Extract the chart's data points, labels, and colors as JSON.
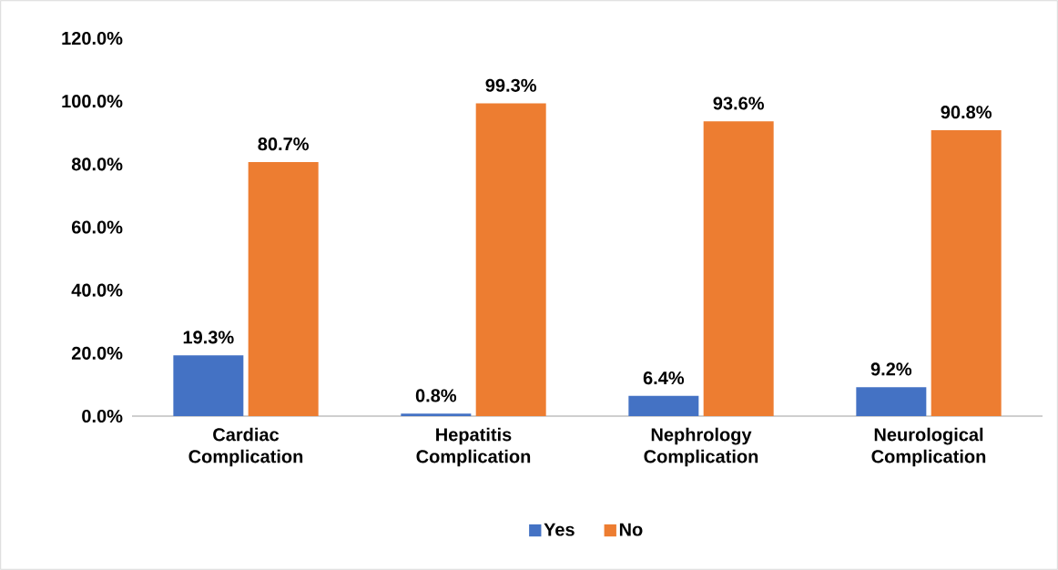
{
  "chart_data": {
    "type": "bar",
    "categories": [
      "Cardiac Complication",
      "Hepatitis Complication",
      "Nephrology Complication",
      "Neurological Complication"
    ],
    "series": [
      {
        "name": "Yes",
        "color": "#4472c4",
        "values": [
          19.3,
          0.8,
          6.4,
          9.2
        ],
        "value_labels": [
          "19.3%",
          "0.8%",
          "6.4%",
          "9.2%"
        ]
      },
      {
        "name": "No",
        "color": "#ed7d31",
        "values": [
          80.7,
          99.3,
          93.6,
          90.8
        ],
        "value_labels": [
          "80.7%",
          "99.3%",
          "93.6%",
          "90.8%"
        ]
      }
    ],
    "ylim": [
      0,
      120
    ],
    "yticks": [
      {
        "value": 0,
        "label": "0.0%"
      },
      {
        "value": 20,
        "label": "20.0%"
      },
      {
        "value": 40,
        "label": "40.0%"
      },
      {
        "value": 60,
        "label": "60.0%"
      },
      {
        "value": 80,
        "label": "80.0%"
      },
      {
        "value": 100,
        "label": "100.0%"
      },
      {
        "value": 120,
        "label": "120.0%"
      }
    ],
    "grid": false,
    "legend": "bottom"
  }
}
